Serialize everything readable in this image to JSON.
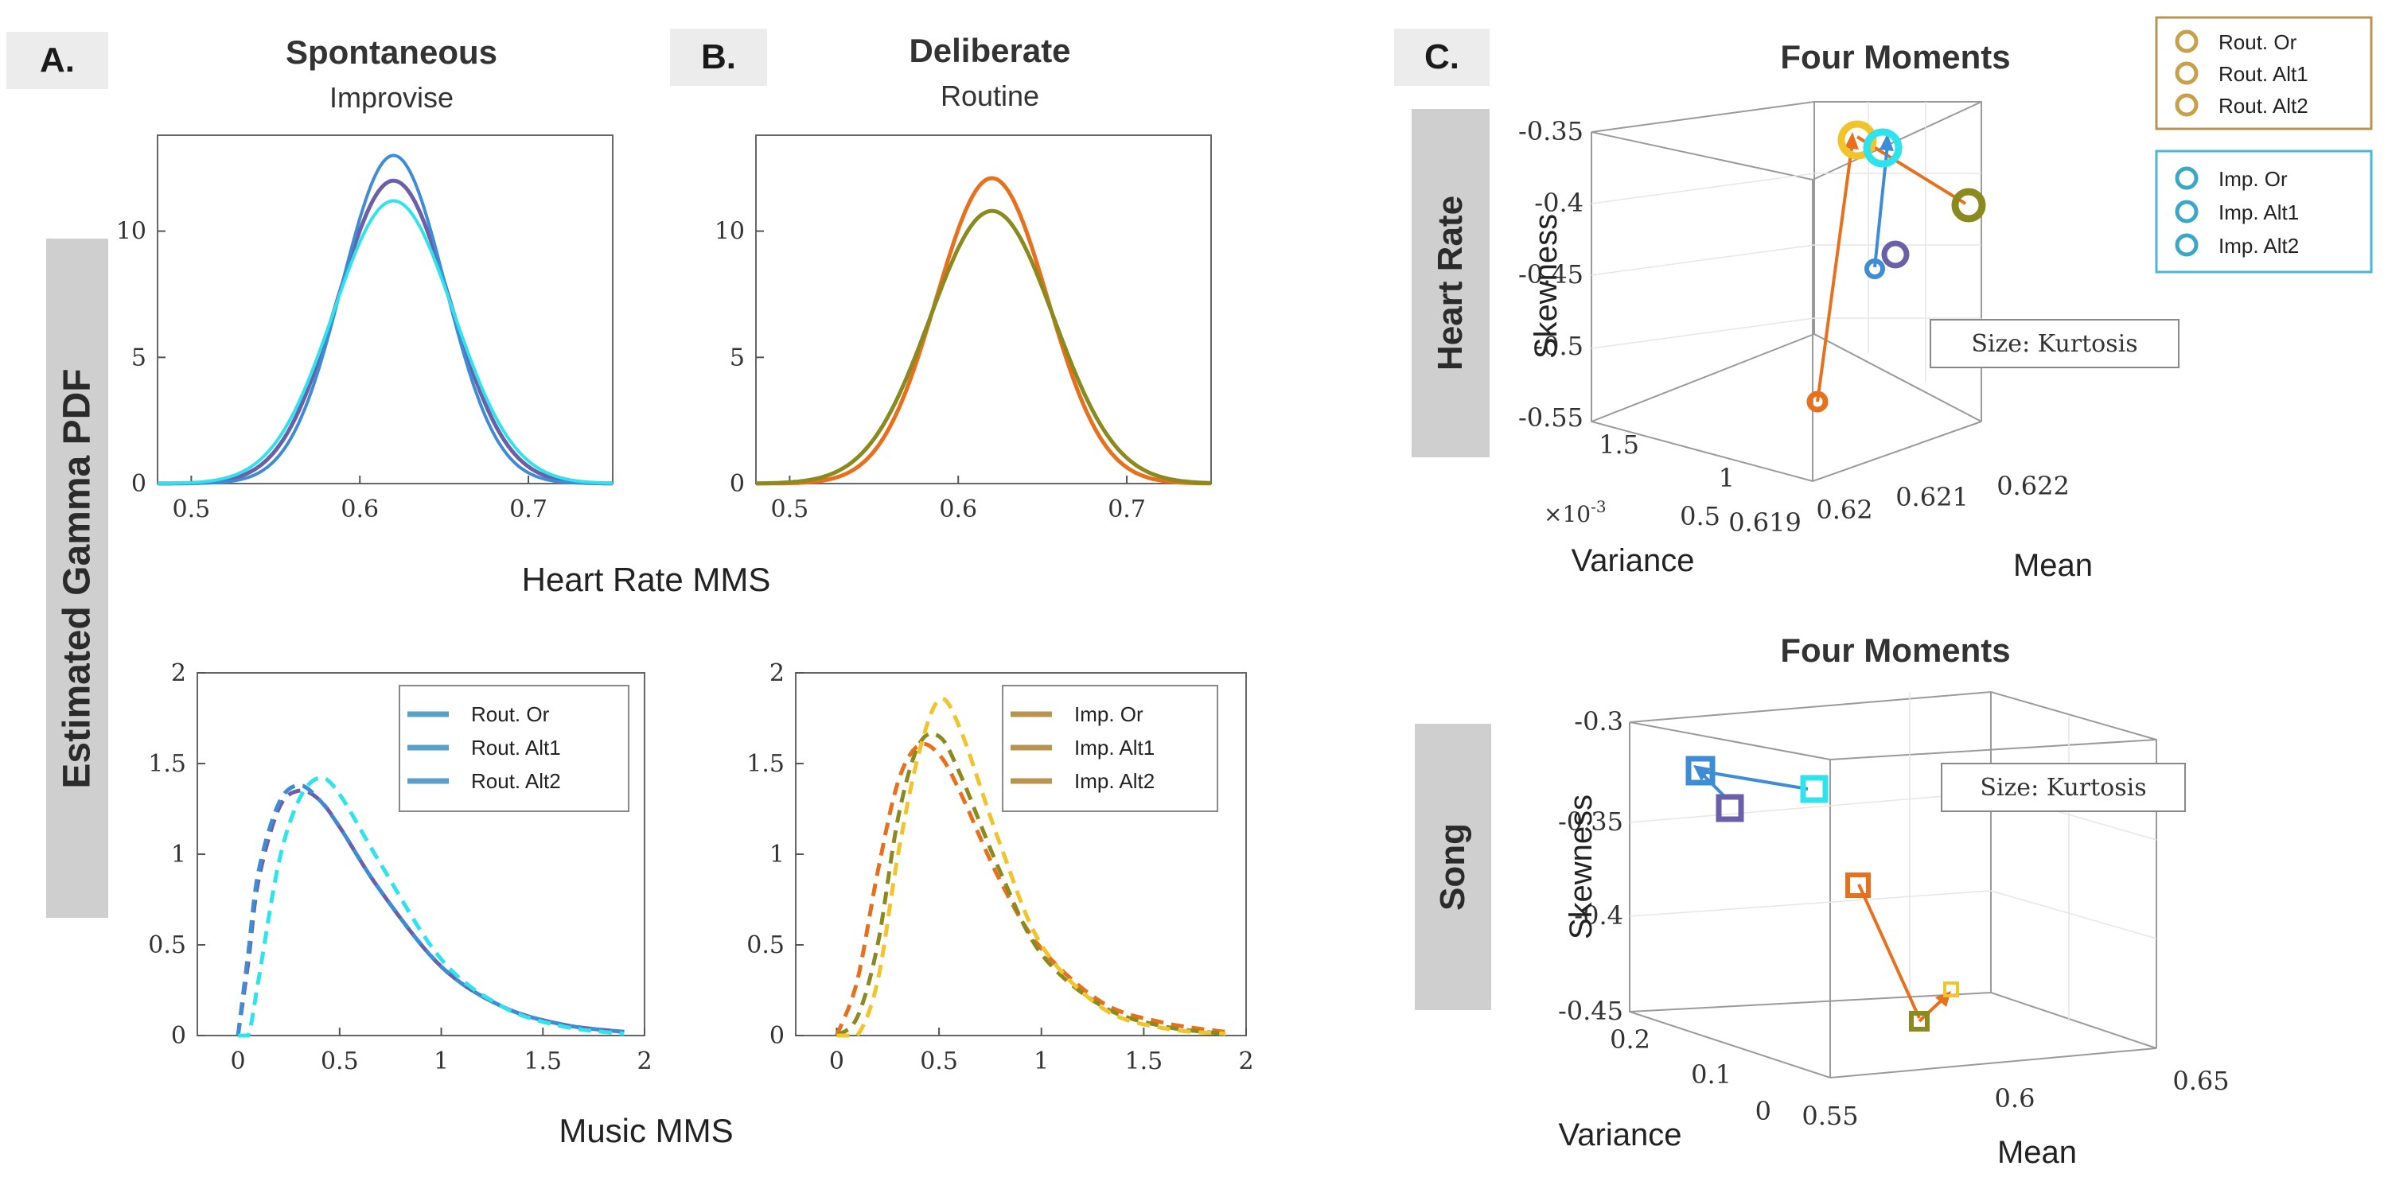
{
  "panels": {
    "a": {
      "tag": "A.",
      "title": "Spontaneous",
      "subtitle": "Improvise"
    },
    "b": {
      "tag": "B.",
      "title": "Deliberate",
      "subtitle": "Routine"
    },
    "c": {
      "tag": "C.",
      "title_top": "Four Moments",
      "title_bottom": "Four Moments"
    }
  },
  "side_labels": {
    "y_main": "Estimated Gamma PDF",
    "hr": "Heart Rate",
    "song": "Song"
  },
  "x_labels": {
    "top": "Heart Rate MMS",
    "bottom": "Music MMS"
  },
  "colors": {
    "rout_or": "#6a5fa8",
    "rout_alt1": "#3e8bd6",
    "rout_alt2": "#2fe3ec",
    "imp_or": "#e8701c",
    "imp_alt1": "#8a8a1e",
    "imp_alt2": "#f2c42b",
    "legend_blue": "#5b9fc9",
    "legend_gold": "#b99450"
  },
  "chart_data": [
    {
      "id": "A-top",
      "type": "line",
      "xlabel": "Heart Rate MMS",
      "ylabel": "Estimated Gamma PDF",
      "xlim": [
        0.48,
        0.75
      ],
      "ylim": [
        0,
        13.8
      ],
      "xticks": [
        "0.5",
        "0.6",
        "0.7"
      ],
      "yticks": [
        "0",
        "5",
        "10"
      ],
      "series": [
        {
          "name": "Rout. Or",
          "mean": 0.62,
          "sd": 0.0333,
          "peak": 12.0
        },
        {
          "name": "Rout. Alt1",
          "mean": 0.62,
          "sd": 0.0306,
          "peak": 13.0
        },
        {
          "name": "Rout. Alt2",
          "mean": 0.62,
          "sd": 0.0356,
          "peak": 11.2
        }
      ]
    },
    {
      "id": "B-top",
      "type": "line",
      "xlabel": "Heart Rate MMS",
      "xlim": [
        0.48,
        0.75
      ],
      "ylim": [
        0,
        13.8
      ],
      "xticks": [
        "0.5",
        "0.6",
        "0.7"
      ],
      "yticks": [
        "0",
        "5",
        "10"
      ],
      "series": [
        {
          "name": "Imp. Or",
          "mean": 0.62,
          "sd": 0.033,
          "peak": 12.1
        },
        {
          "name": "Imp. Alt1",
          "mean": 0.62,
          "sd": 0.0368,
          "peak": 10.8
        }
      ]
    },
    {
      "id": "A-bottom",
      "type": "line",
      "xlabel": "Music MMS",
      "xlim": [
        -0.2,
        2.0
      ],
      "ylim": [
        0,
        2
      ],
      "xticks": [
        "0",
        "0.5",
        "1",
        "1.5",
        "2"
      ],
      "yticks": [
        "0",
        "0.5",
        "1",
        "1.5",
        "2"
      ],
      "legend": [
        "Rout. Or",
        "Rout. Alt1",
        "Rout. Alt2"
      ],
      "series": [
        {
          "name": "Rout. Or",
          "x": [
            0,
            0.05,
            0.1,
            0.2,
            0.3,
            0.4,
            0.5,
            0.7,
            1.0,
            1.3,
            1.6,
            1.9
          ],
          "y": [
            0,
            0.4,
            0.85,
            1.25,
            1.35,
            1.3,
            1.15,
            0.8,
            0.38,
            0.16,
            0.06,
            0.02
          ]
        },
        {
          "name": "Rout. Alt1",
          "x": [
            0,
            0.05,
            0.1,
            0.2,
            0.3,
            0.4,
            0.5,
            0.7,
            1.0,
            1.3,
            1.6,
            1.9
          ],
          "y": [
            0,
            0.45,
            0.9,
            1.28,
            1.38,
            1.3,
            1.15,
            0.8,
            0.38,
            0.16,
            0.06,
            0.02
          ]
        },
        {
          "name": "Rout. Alt2",
          "x": [
            0,
            0.05,
            0.1,
            0.2,
            0.3,
            0.4,
            0.5,
            0.7,
            1.0,
            1.3,
            1.6,
            1.9
          ],
          "y": [
            0,
            0.0,
            0.3,
            0.95,
            1.3,
            1.42,
            1.33,
            0.95,
            0.42,
            0.16,
            0.05,
            0.01
          ]
        }
      ]
    },
    {
      "id": "B-bottom",
      "type": "line",
      "xlabel": "Music MMS",
      "xlim": [
        -0.2,
        2.0
      ],
      "ylim": [
        0,
        2
      ],
      "xticks": [
        "0",
        "0.5",
        "1",
        "1.5",
        "2"
      ],
      "yticks": [
        "0",
        "0.5",
        "1",
        "1.5",
        "2"
      ],
      "legend": [
        "Imp. Or",
        "Imp. Alt1",
        "Imp. Alt2"
      ],
      "series": [
        {
          "name": "Imp. Or",
          "x": [
            0,
            0.1,
            0.2,
            0.3,
            0.4,
            0.5,
            0.6,
            0.8,
            1.0,
            1.3,
            1.6,
            1.9
          ],
          "y": [
            0,
            0.3,
            0.9,
            1.4,
            1.6,
            1.55,
            1.35,
            0.85,
            0.48,
            0.18,
            0.07,
            0.02
          ]
        },
        {
          "name": "Imp. Alt1",
          "x": [
            0,
            0.1,
            0.2,
            0.3,
            0.4,
            0.5,
            0.6,
            0.8,
            1.0,
            1.3,
            1.6,
            1.9
          ],
          "y": [
            0,
            0.1,
            0.5,
            1.2,
            1.6,
            1.65,
            1.45,
            0.9,
            0.45,
            0.16,
            0.05,
            0.01
          ]
        },
        {
          "name": "Imp. Alt2",
          "x": [
            0,
            0.1,
            0.2,
            0.3,
            0.4,
            0.5,
            0.6,
            0.8,
            1.0,
            1.3,
            1.6,
            1.9
          ],
          "y": [
            0,
            0.0,
            0.3,
            1.0,
            1.55,
            1.85,
            1.7,
            1.05,
            0.5,
            0.15,
            0.04,
            0.01
          ]
        }
      ]
    },
    {
      "id": "C-top",
      "type": "scatter",
      "title": "Four Moments",
      "row_label": "Heart Rate",
      "xlabel": "Mean",
      "ylabel": "Skewness",
      "zlabel": "Variance",
      "mean_ticks": [
        "0.619",
        "0.62",
        "0.621",
        "0.622"
      ],
      "skew_ticks": [
        "-0.35",
        "-0.4",
        "-0.45",
        "-0.5",
        "-0.55"
      ],
      "var_ticks": [
        "1.5",
        "1",
        "0.5"
      ],
      "var_multiplier": "×10",
      "var_exponent": "-3",
      "size_note": "Size: Kurtosis",
      "legend_gold": [
        "Rout. Or",
        "Rout. Alt1",
        "Rout. Alt2"
      ],
      "legend_blue": [
        "Imp. Or",
        "Imp. Alt1",
        "Imp. Alt2"
      ],
      "points": [
        {
          "name": "Imp. Alt1",
          "kurtosis_rank": 5
        },
        {
          "name": "Rout. Alt2",
          "kurtosis_rank": 4
        },
        {
          "name": "Imp. Or",
          "kurtosis_rank": 2
        },
        {
          "name": "Rout. Alt1",
          "kurtosis_rank": 1
        },
        {
          "name": "Imp. Alt2",
          "kurtosis_rank": 3
        },
        {
          "name": "Rout. Or",
          "kurtosis_rank": 2
        }
      ]
    },
    {
      "id": "C-bottom",
      "type": "scatter",
      "title": "Four Moments",
      "row_label": "Song",
      "xlabel": "Mean",
      "ylabel": "Skewness",
      "zlabel": "Variance",
      "mean_ticks": [
        "0.55",
        "0.6",
        "0.65"
      ],
      "skew_ticks": [
        "-0.3",
        "-0.35",
        "-0.4",
        "-0.45"
      ],
      "var_ticks": [
        "0.2",
        "0.1",
        "0"
      ],
      "size_note": "Size: Kurtosis"
    }
  ]
}
